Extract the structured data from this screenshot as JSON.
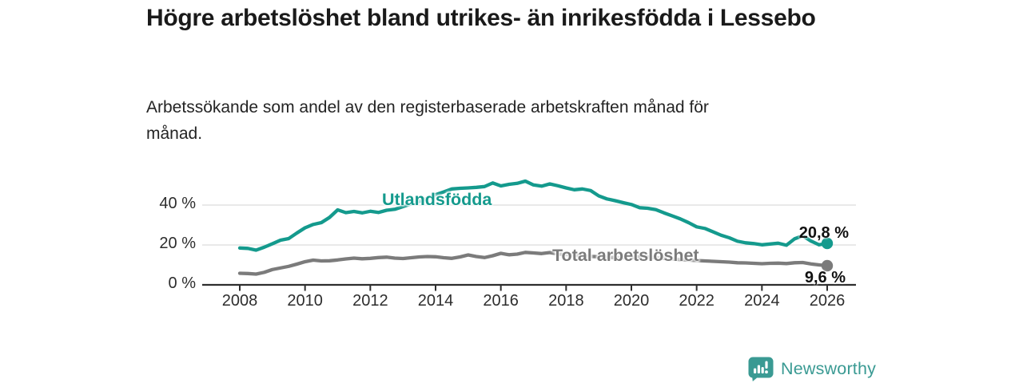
{
  "title": "Högre arbetslöshet bland utrikes- än inrikesfödda i Lessebo",
  "subtitle": "Arbetssökande som andel av den registerbaserade arbetskraften månad för månad.",
  "branding": {
    "name": "Newsworthy",
    "logo_icon": "speech-bubble-bar-chart",
    "color": "#3a9a93"
  },
  "colors": {
    "accent_teal": "#149a8d",
    "neutral_gray": "#7b7b7b",
    "axis": "#2e2e2e",
    "gridline": "#dcdcdc",
    "text": "#1a1a1a"
  },
  "chart_data": {
    "type": "line",
    "title": "Högre arbetslöshet bland utrikes- än inrikesfödda i Lessebo",
    "subtitle": "Arbetssökande som andel av den registerbaserade arbetskraften månad för månad.",
    "unit": "%",
    "xlim": [
      2006.85,
      2026.9
    ],
    "ylim": [
      0,
      56
    ],
    "grid": "horizontal",
    "legend_position": "inline-labels",
    "y_ticks": {
      "values": [
        0,
        20,
        40
      ],
      "labels": [
        "0 %",
        "20 %",
        "40 %"
      ]
    },
    "x_ticks": {
      "values": [
        2008,
        2010,
        2012,
        2014,
        2016,
        2018,
        2020,
        2022,
        2024,
        2026
      ],
      "labels": [
        "2008",
        "2010",
        "2012",
        "2014",
        "2016",
        "2018",
        "2020",
        "2022",
        "2024",
        "2026"
      ]
    },
    "x_start": 2008.0,
    "x_step": 0.25,
    "series": [
      {
        "name": "Utlandsfödda",
        "color": "#149a8d",
        "end_label": "20,8 %",
        "end_value": 20.8,
        "values": [
          18.5,
          18.3,
          17.4,
          18.9,
          20.6,
          22.4,
          23.2,
          26.0,
          28.6,
          30.3,
          31.2,
          33.8,
          37.6,
          36.2,
          36.8,
          36.1,
          36.9,
          36.3,
          37.4,
          37.9,
          39.2,
          40.6,
          41.9,
          43.4,
          45.2,
          46.6,
          48.1,
          48.4,
          48.6,
          48.9,
          49.3,
          51.1,
          49.6,
          50.4,
          50.9,
          52.0,
          50.1,
          49.5,
          50.6,
          49.7,
          48.6,
          47.7,
          48.1,
          47.3,
          44.6,
          43.1,
          42.2,
          41.2,
          40.3,
          38.7,
          38.4,
          37.7,
          36.1,
          34.6,
          33.1,
          31.2,
          29.1,
          28.3,
          26.6,
          24.9,
          23.6,
          21.9,
          21.1,
          20.7,
          20.1,
          20.5,
          20.9,
          19.9,
          23.1,
          24.6,
          22.0,
          20.1,
          20.8
        ]
      },
      {
        "name": "Total arbetslöshet",
        "color": "#7b7b7b",
        "end_label": "9,6 %",
        "end_value": 9.6,
        "values": [
          5.8,
          5.7,
          5.4,
          6.3,
          7.7,
          8.5,
          9.3,
          10.4,
          11.6,
          12.4,
          12.0,
          12.1,
          12.5,
          13.0,
          13.4,
          13.1,
          13.3,
          13.7,
          13.9,
          13.4,
          13.2,
          13.6,
          14.0,
          14.2,
          14.1,
          13.6,
          13.3,
          14.0,
          15.0,
          14.2,
          13.7,
          14.6,
          15.8,
          15.1,
          15.4,
          16.3,
          16.0,
          15.7,
          16.2,
          15.5,
          15.2,
          14.9,
          14.6,
          14.3,
          14.1,
          13.9,
          13.7,
          13.6,
          13.7,
          14.1,
          13.9,
          13.6,
          13.3,
          13.0,
          12.7,
          12.4,
          12.2,
          12.0,
          11.8,
          11.6,
          11.4,
          11.1,
          11.0,
          10.8,
          10.6,
          10.8,
          10.9,
          10.7,
          11.1,
          11.2,
          10.5,
          10.0,
          9.6
        ]
      }
    ]
  }
}
